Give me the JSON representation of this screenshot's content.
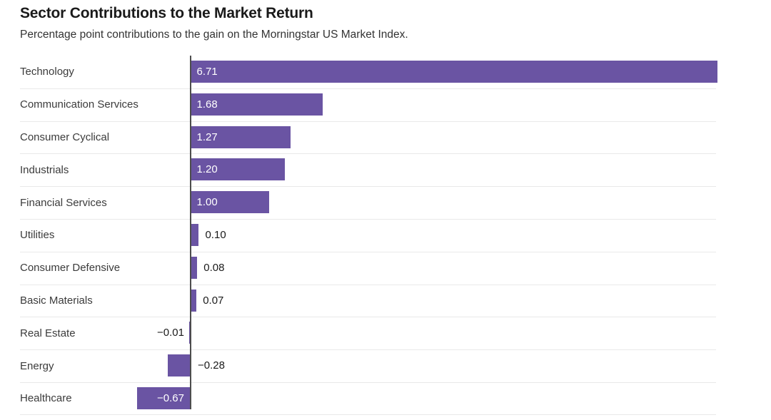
{
  "header": {
    "title": "Sector Contributions to the Market Return",
    "subtitle": "Percentage point contributions to the gain on the Morningstar US Market Index."
  },
  "chart_data": {
    "type": "bar",
    "orientation": "horizontal",
    "title": "Sector Contributions to the Market Return",
    "subtitle": "Percentage point contributions to the gain on the Morningstar US Market Index.",
    "categories": [
      "Technology",
      "Communication Services",
      "Consumer Cyclical",
      "Industrials",
      "Financial Services",
      "Utilities",
      "Consumer Defensive",
      "Basic Materials",
      "Real Estate",
      "Energy",
      "Healthcare"
    ],
    "values": [
      6.71,
      1.68,
      1.27,
      1.2,
      1.0,
      0.1,
      0.08,
      0.07,
      -0.01,
      -0.28,
      -0.67
    ],
    "value_labels": [
      "6.71",
      "1.68",
      "1.27",
      "1.20",
      "1.00",
      "0.10",
      "0.08",
      "0.07",
      "−0.01",
      "−0.28",
      "−0.67"
    ],
    "xlabel": "",
    "ylabel": "",
    "xlim": [
      -0.67,
      6.71
    ],
    "grid": "row-separators-only",
    "legend": "none",
    "zero_axis_line": true
  },
  "colors": {
    "bar": "#6A54A3",
    "title": "#1a1a1a",
    "subtitle": "#333333",
    "category_label": "#3b3b3b",
    "value_dark": "#1a1a1a",
    "value_light": "#ffffff",
    "separator": "#e9e9e9",
    "axis_line": "#4d4d4d",
    "background": "#ffffff"
  }
}
